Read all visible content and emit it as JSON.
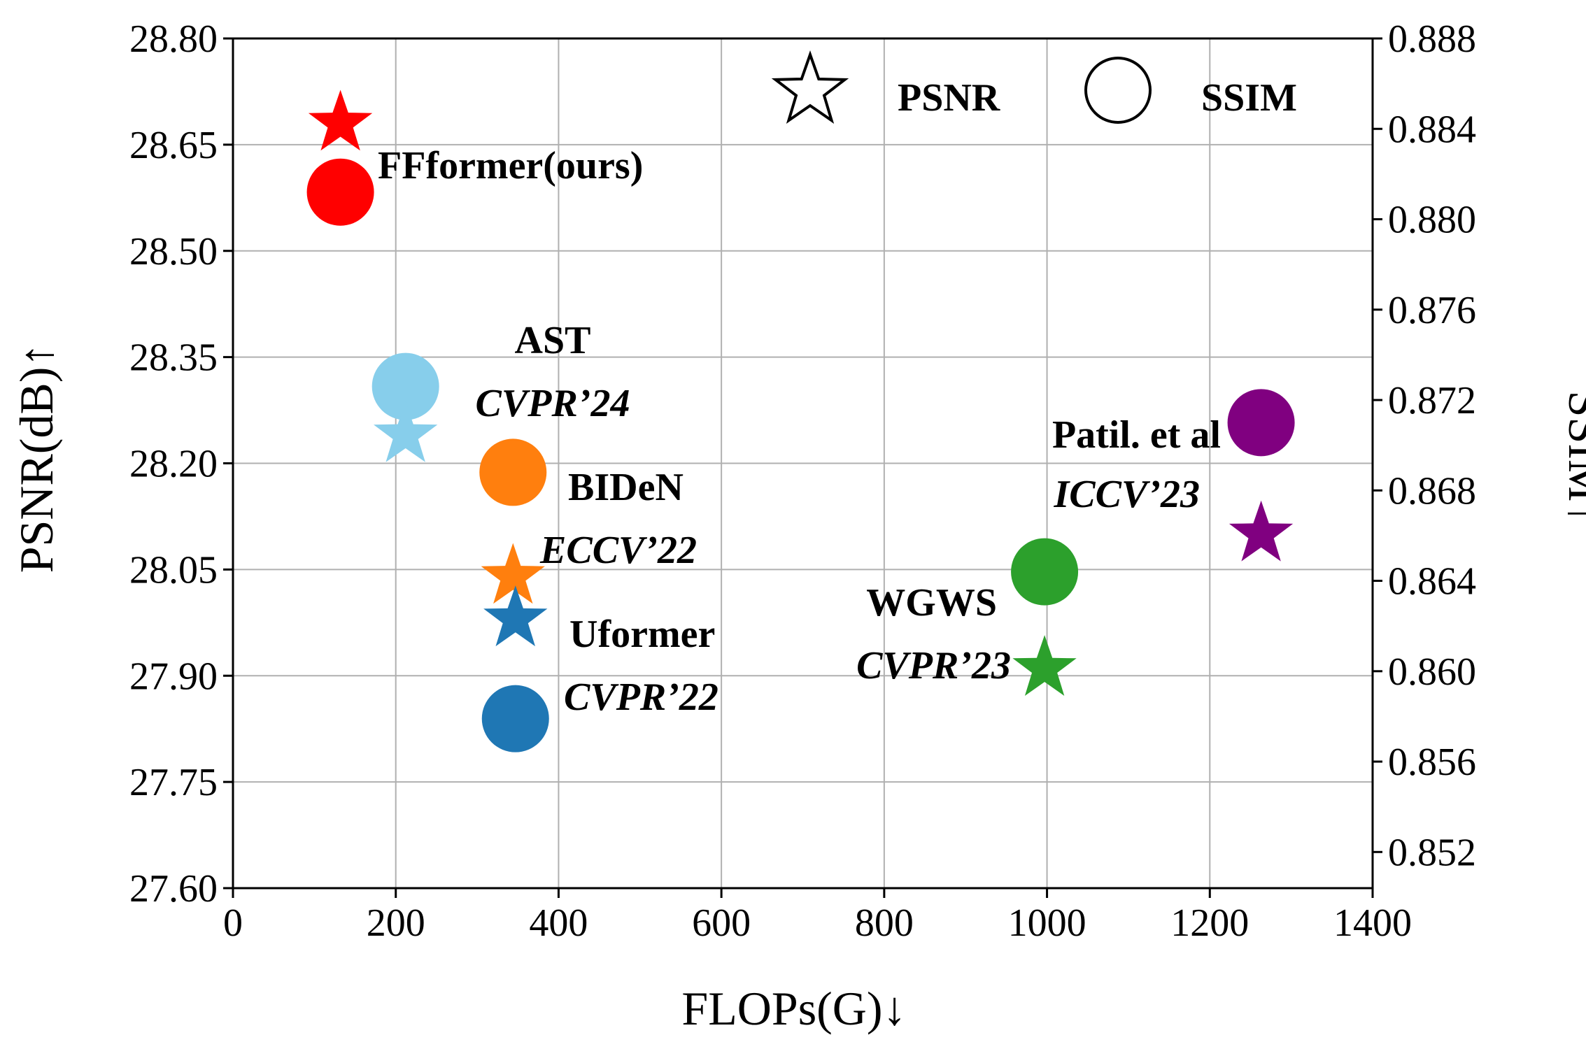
{
  "chart_data": {
    "type": "scatter",
    "xlabel": "FLOPs(G)↓",
    "ylabel_left": "PSNR(dB)↑",
    "ylabel_right": "SSIM↑",
    "xlim": [
      0,
      1400
    ],
    "ylim_left": [
      27.6,
      28.8
    ],
    "ylim_right": [
      0.8504,
      0.888
    ],
    "x_ticks": [
      "0",
      "200",
      "400",
      "600",
      "800",
      "1000",
      "1200",
      "1400"
    ],
    "y_ticks_left": [
      "27.60",
      "27.75",
      "27.90",
      "28.05",
      "28.20",
      "28.35",
      "28.50",
      "28.65",
      "28.80"
    ],
    "y_ticks_right": [
      "0.852",
      "0.856",
      "0.860",
      "0.864",
      "0.868",
      "0.872",
      "0.876",
      "0.880",
      "0.884",
      "0.888"
    ],
    "grid": true,
    "legend": {
      "position": "top-right",
      "psnr_label": "PSNR",
      "ssim_label": "SSIM"
    },
    "series": [
      {
        "name": "FFformer(ours)",
        "venue": "",
        "color": "#ff0000",
        "flops": 132,
        "psnr": 28.68,
        "ssim": 0.8812
      },
      {
        "name": "AST",
        "venue": "CVPR’24",
        "color": "#87ceeb",
        "flops": 212,
        "psnr": 28.24,
        "ssim": 0.8726
      },
      {
        "name": "BIDeN",
        "venue": "ECCV’22",
        "color": "#ff7f0e",
        "flops": 344,
        "psnr": 28.04,
        "ssim": 0.8688
      },
      {
        "name": "Uformer",
        "venue": "CVPR’22",
        "color": "#1f77b4",
        "flops": 347,
        "psnr": 27.98,
        "ssim": 0.8579
      },
      {
        "name": "WGWS",
        "venue": "CVPR’23",
        "color": "#2ca02c",
        "flops": 997,
        "psnr": 27.91,
        "ssim": 0.8644
      },
      {
        "name": "Patil. et al",
        "venue": "ICCV’23",
        "color": "#800080",
        "flops": 1263,
        "psnr": 28.1,
        "ssim": 0.871
      }
    ]
  }
}
